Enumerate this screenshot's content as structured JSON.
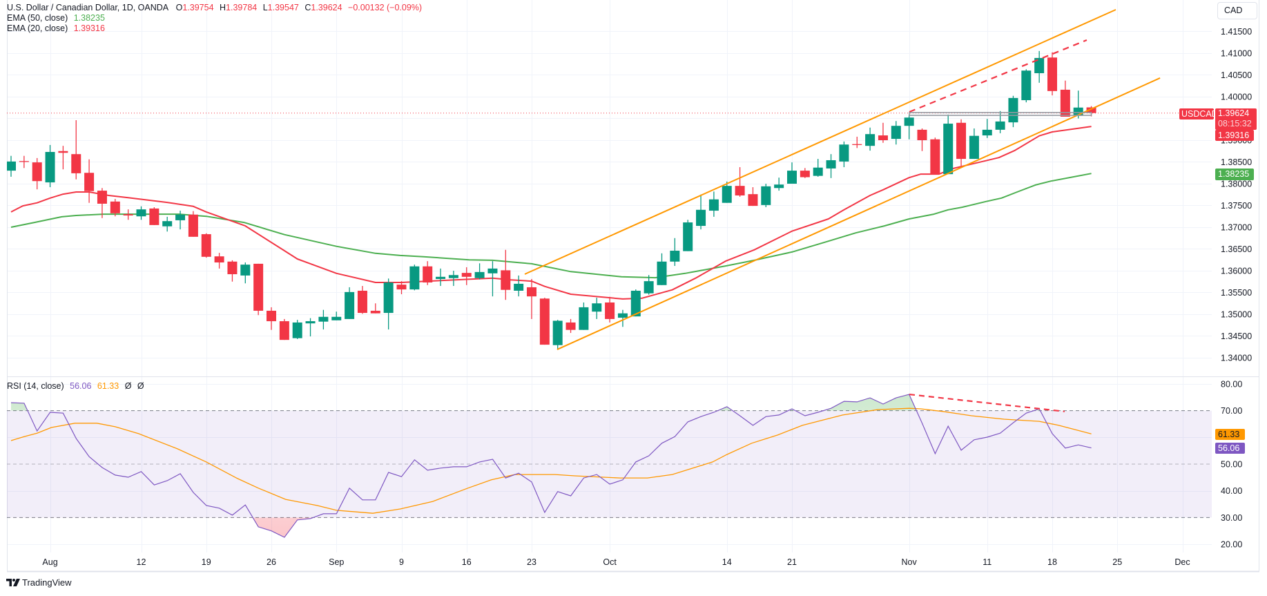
{
  "legend": {
    "title": "U.S. Dollar / Canadian Dollar, 1D, OANDA",
    "open_label": "O",
    "open": "1.39754",
    "high_label": "H",
    "high": "1.39784",
    "low_label": "L",
    "low": "1.39547",
    "close_label": "C",
    "close": "1.39624",
    "change": "−0.00132 (−0.09%)",
    "ema50_label": "EMA (50, close)",
    "ema50_value": "1.38235",
    "ema20_label": "EMA (20, close)",
    "ema20_value": "1.39316",
    "rsi_label": "RSI (14, close)",
    "rsi_value": "56.06",
    "rsi_ma_value": "61.33",
    "rsi_extra_1": "Ø",
    "rsi_extra_2": "Ø"
  },
  "currency_button": "CAD",
  "price_labels": {
    "symbol": "USDCAD",
    "last_price": "1.39624",
    "countdown": "08:15:32",
    "ema20": "1.39316",
    "ema50": "1.38235",
    "rsi_ma": "61.33",
    "rsi": "56.06"
  },
  "branding": {
    "logo_icon": "tradingview-logo-icon",
    "name": "TradingView"
  },
  "colors": {
    "up": "#089981",
    "down": "#f23645",
    "ema20": "#f23645",
    "ema50": "#4caf50",
    "channel": "#ff9800",
    "rsi": "#7e57c2",
    "rsi_ma": "#ff9800",
    "grid": "#f0f3fa",
    "rsi_band": "#7e57c2",
    "rect": "#9598a1"
  },
  "chart_data": {
    "type": "candlestick",
    "symbol": "USDCAD",
    "timeframe": "1D",
    "ylim": [
      1.334,
      1.4205
    ],
    "price_ticks": [
      "1.41500",
      "1.41000",
      "1.40500",
      "1.40000",
      "1.39000",
      "1.38500",
      "1.38000",
      "1.37500",
      "1.37000",
      "1.36500",
      "1.36000",
      "1.35500",
      "1.35000",
      "1.34500",
      "1.34000"
    ],
    "time_ticks": [
      {
        "label": "Aug",
        "index": 3
      },
      {
        "label": "12",
        "index": 10
      },
      {
        "label": "19",
        "index": 15
      },
      {
        "label": "26",
        "index": 20
      },
      {
        "label": "Sep",
        "index": 25
      },
      {
        "label": "9",
        "index": 30
      },
      {
        "label": "16",
        "index": 35
      },
      {
        "label": "23",
        "index": 40
      },
      {
        "label": "Oct",
        "index": 46
      },
      {
        "label": "14",
        "index": 55
      },
      {
        "label": "21",
        "index": 60
      },
      {
        "label": "Nov",
        "index": 69
      },
      {
        "label": "11",
        "index": 75
      },
      {
        "label": "18",
        "index": 80
      },
      {
        "label": "25",
        "index": 85
      },
      {
        "label": "Dec",
        "index": 90
      }
    ],
    "ohlc": [
      [
        1.383,
        1.3864,
        1.3816,
        1.3851
      ],
      [
        1.3852,
        1.3864,
        1.3836,
        1.385
      ],
      [
        1.3849,
        1.3859,
        1.3787,
        1.3806
      ],
      [
        1.3803,
        1.3889,
        1.3792,
        1.3873
      ],
      [
        1.3875,
        1.3887,
        1.3833,
        1.3871
      ],
      [
        1.3868,
        1.3946,
        1.381,
        1.3824
      ],
      [
        1.3825,
        1.3856,
        1.3756,
        1.3783
      ],
      [
        1.3784,
        1.379,
        1.3721,
        1.3754
      ],
      [
        1.3759,
        1.3765,
        1.3725,
        1.3732
      ],
      [
        1.373,
        1.3741,
        1.3717,
        1.3727
      ],
      [
        1.3725,
        1.3748,
        1.3717,
        1.3741
      ],
      [
        1.3743,
        1.3746,
        1.3705,
        1.3705
      ],
      [
        1.3702,
        1.3724,
        1.369,
        1.3714
      ],
      [
        1.3716,
        1.3738,
        1.3695,
        1.3729
      ],
      [
        1.3729,
        1.3737,
        1.3678,
        1.3678
      ],
      [
        1.3684,
        1.3686,
        1.363,
        1.3632
      ],
      [
        1.3633,
        1.3641,
        1.3605,
        1.3619
      ],
      [
        1.3621,
        1.3624,
        1.3575,
        1.3592
      ],
      [
        1.3589,
        1.3619,
        1.3571,
        1.3614
      ],
      [
        1.3616,
        1.3616,
        1.3498,
        1.3508
      ],
      [
        1.3508,
        1.3516,
        1.3464,
        1.3484
      ],
      [
        1.3484,
        1.3489,
        1.3441,
        1.3441
      ],
      [
        1.3445,
        1.3487,
        1.3443,
        1.3481
      ],
      [
        1.3479,
        1.3491,
        1.3449,
        1.3484
      ],
      [
        1.3483,
        1.351,
        1.3465,
        1.3494
      ],
      [
        1.3486,
        1.3506,
        1.3486,
        1.3494
      ],
      [
        1.3489,
        1.3562,
        1.3489,
        1.3551
      ],
      [
        1.3554,
        1.3565,
        1.3501,
        1.3503
      ],
      [
        1.3508,
        1.3525,
        1.3502,
        1.3502
      ],
      [
        1.3503,
        1.3582,
        1.3465,
        1.3573
      ],
      [
        1.3568,
        1.3576,
        1.3546,
        1.3557
      ],
      [
        1.3557,
        1.3614,
        1.3555,
        1.361
      ],
      [
        1.361,
        1.3622,
        1.3567,
        1.3573
      ],
      [
        1.3581,
        1.3605,
        1.3565,
        1.3586
      ],
      [
        1.3583,
        1.36,
        1.3565,
        1.359
      ],
      [
        1.3595,
        1.3608,
        1.3567,
        1.3586
      ],
      [
        1.3583,
        1.3617,
        1.358,
        1.3597
      ],
      [
        1.3594,
        1.3622,
        1.3541,
        1.3605
      ],
      [
        1.3601,
        1.3648,
        1.3533,
        1.3556
      ],
      [
        1.3554,
        1.3589,
        1.3541,
        1.357
      ],
      [
        1.3562,
        1.3581,
        1.3489,
        1.3541
      ],
      [
        1.3536,
        1.3538,
        1.343,
        1.343
      ],
      [
        1.3429,
        1.3487,
        1.3419,
        1.3485
      ],
      [
        1.3481,
        1.3489,
        1.3457,
        1.3464
      ],
      [
        1.3464,
        1.3527,
        1.3464,
        1.3516
      ],
      [
        1.3506,
        1.3538,
        1.3489,
        1.3525
      ],
      [
        1.3527,
        1.354,
        1.3481,
        1.3489
      ],
      [
        1.3492,
        1.351,
        1.3471,
        1.3502
      ],
      [
        1.3495,
        1.3557,
        1.3495,
        1.3554
      ],
      [
        1.3548,
        1.359,
        1.3545,
        1.3576
      ],
      [
        1.3567,
        1.364,
        1.3567,
        1.3621
      ],
      [
        1.3621,
        1.3675,
        1.3611,
        1.3646
      ],
      [
        1.3645,
        1.3717,
        1.3645,
        1.3711
      ],
      [
        1.3703,
        1.3775,
        1.3695,
        1.374
      ],
      [
        1.3738,
        1.3782,
        1.3724,
        1.3764
      ],
      [
        1.3756,
        1.3805,
        1.3756,
        1.3795
      ],
      [
        1.3795,
        1.3838,
        1.377,
        1.3773
      ],
      [
        1.3776,
        1.3792,
        1.3749,
        1.3749
      ],
      [
        1.3751,
        1.38,
        1.3746,
        1.3794
      ],
      [
        1.379,
        1.3814,
        1.3784,
        1.3798
      ],
      [
        1.38,
        1.3849,
        1.38,
        1.383
      ],
      [
        1.383,
        1.3836,
        1.3813,
        1.3815
      ],
      [
        1.3818,
        1.3857,
        1.3816,
        1.3837
      ],
      [
        1.3835,
        1.3868,
        1.3813,
        1.3854
      ],
      [
        1.3851,
        1.3897,
        1.3838,
        1.389
      ],
      [
        1.3891,
        1.3908,
        1.3882,
        1.3889
      ],
      [
        1.3887,
        1.3929,
        1.3876,
        1.3914
      ],
      [
        1.3911,
        1.394,
        1.3894,
        1.39
      ],
      [
        1.3903,
        1.3944,
        1.389,
        1.3933
      ],
      [
        1.3933,
        1.3959,
        1.3902,
        1.3952
      ],
      [
        1.3924,
        1.3927,
        1.3875,
        1.39
      ],
      [
        1.3902,
        1.3906,
        1.3822,
        1.3822
      ],
      [
        1.3822,
        1.3959,
        1.3822,
        1.3938
      ],
      [
        1.394,
        1.3948,
        1.3841,
        1.3857
      ],
      [
        1.3857,
        1.3927,
        1.3857,
        1.391
      ],
      [
        1.3911,
        1.3949,
        1.3905,
        1.3924
      ],
      [
        1.3924,
        1.3967,
        1.3916,
        1.3943
      ],
      [
        1.3941,
        1.4002,
        1.393,
        1.3997
      ],
      [
        1.3992,
        1.4063,
        1.3987,
        1.406
      ],
      [
        1.4054,
        1.4105,
        1.4032,
        1.4089
      ],
      [
        1.409,
        1.4102,
        1.4003,
        1.4013
      ],
      [
        1.4016,
        1.4037,
        1.3954,
        1.3954
      ],
      [
        1.3956,
        1.4014,
        1.395,
        1.3975
      ],
      [
        1.39754,
        1.39784,
        1.39547,
        1.39624
      ]
    ],
    "ema20": [
      [
        0,
        1.3735
      ],
      [
        0.9,
        1.3749
      ],
      [
        2,
        1.3756
      ],
      [
        3,
        1.3767
      ],
      [
        4,
        1.3776
      ],
      [
        5,
        1.3781
      ],
      [
        6,
        1.3781
      ],
      [
        7.5,
        1.3773
      ],
      [
        9,
        1.3768
      ],
      [
        12,
        1.3757
      ],
      [
        14,
        1.3748
      ],
      [
        15,
        1.3735
      ],
      [
        18,
        1.3703
      ],
      [
        21,
        1.3646
      ],
      [
        22,
        1.3627
      ],
      [
        25,
        1.3594
      ],
      [
        28,
        1.3573
      ],
      [
        30,
        1.3573
      ],
      [
        32,
        1.3576
      ],
      [
        37,
        1.3583
      ],
      [
        38.4,
        1.3579
      ],
      [
        40,
        1.3576
      ],
      [
        41,
        1.3564
      ],
      [
        43,
        1.3546
      ],
      [
        47,
        1.3535
      ],
      [
        48.5,
        1.3537
      ],
      [
        50.8,
        1.3556
      ],
      [
        52.6,
        1.3583
      ],
      [
        54.9,
        1.3622
      ],
      [
        57.1,
        1.3648
      ],
      [
        60,
        1.3691
      ],
      [
        62.8,
        1.3719
      ],
      [
        64,
        1.374
      ],
      [
        66,
        1.3773
      ],
      [
        67,
        1.3786
      ],
      [
        69,
        1.3814
      ],
      [
        69.9,
        1.3822
      ],
      [
        71.3,
        1.3822
      ],
      [
        72.4,
        1.3835
      ],
      [
        74.2,
        1.3848
      ],
      [
        75.9,
        1.386
      ],
      [
        77.1,
        1.3876
      ],
      [
        79,
        1.391
      ],
      [
        80,
        1.3919
      ],
      [
        83,
        1.39316
      ]
    ],
    "ema50": [
      [
        0,
        1.37
      ],
      [
        1.8,
        1.3711
      ],
      [
        3.9,
        1.3724
      ],
      [
        5,
        1.3727
      ],
      [
        7.1,
        1.373
      ],
      [
        12.9,
        1.373
      ],
      [
        15,
        1.3725
      ],
      [
        17.9,
        1.3711
      ],
      [
        21,
        1.3683
      ],
      [
        25,
        1.3656
      ],
      [
        28,
        1.364
      ],
      [
        29.9,
        1.3635
      ],
      [
        31.7,
        1.3632
      ],
      [
        35.2,
        1.3625
      ],
      [
        37,
        1.3624
      ],
      [
        40,
        1.3616
      ],
      [
        43,
        1.3598
      ],
      [
        46.9,
        1.3586
      ],
      [
        49.5,
        1.3584
      ],
      [
        51.8,
        1.3594
      ],
      [
        54.9,
        1.3611
      ],
      [
        57.1,
        1.3624
      ],
      [
        60,
        1.3643
      ],
      [
        62.8,
        1.3668
      ],
      [
        64.9,
        1.3687
      ],
      [
        67.1,
        1.3703
      ],
      [
        69,
        1.3719
      ],
      [
        70.9,
        1.373
      ],
      [
        72,
        1.374
      ],
      [
        73.1,
        1.3746
      ],
      [
        74.9,
        1.3759
      ],
      [
        76.1,
        1.3767
      ],
      [
        77.3,
        1.3781
      ],
      [
        78.7,
        1.3797
      ],
      [
        79.9,
        1.3806
      ],
      [
        83,
        1.38235
      ]
    ],
    "rsi": {
      "ylim": [
        15,
        84
      ],
      "ticks": [
        "80.00",
        "70.00",
        "50.00",
        "40.00",
        "30.00",
        "20.00"
      ],
      "upper_band": 70,
      "middle_band": 50,
      "lower_band": 30,
      "values": [
        73.0,
        72.8,
        62.4,
        69.4,
        69.1,
        59.6,
        52.8,
        48.7,
        45.9,
        45.1,
        47.2,
        42.2,
        43.8,
        46.4,
        39.4,
        34.5,
        33.5,
        30.9,
        34.7,
        26.5,
        25.0,
        22.6,
        29.1,
        29.6,
        31.4,
        31.4,
        41.0,
        36.6,
        36.6,
        46.9,
        45.3,
        51.6,
        47.7,
        48.5,
        49.0,
        49.0,
        50.8,
        51.8,
        44.8,
        46.6,
        43.3,
        31.9,
        39.7,
        38.1,
        44.8,
        46.1,
        42.5,
        44.1,
        50.8,
        53.1,
        57.8,
        60.3,
        65.8,
        67.8,
        69.4,
        71.5,
        68.1,
        64.5,
        67.8,
        68.4,
        70.7,
        68.1,
        69.4,
        70.9,
        73.5,
        73.3,
        74.8,
        72.5,
        74.8,
        76.1,
        65.3,
        53.9,
        64.2,
        55.2,
        59.1,
        60.1,
        61.6,
        65.5,
        69.1,
        70.7,
        61.4,
        56.0,
        57.2,
        56.06
      ],
      "ma": [
        [
          0,
          58.8
        ],
        [
          1,
          60.3
        ],
        [
          2,
          61.6
        ],
        [
          3.1,
          63.7
        ],
        [
          4.9,
          65.3
        ],
        [
          6.6,
          65.3
        ],
        [
          8,
          64.0
        ],
        [
          9.8,
          61.4
        ],
        [
          12.8,
          55.7
        ],
        [
          15,
          50.8
        ],
        [
          17.4,
          44.6
        ],
        [
          19,
          41.0
        ],
        [
          21.1,
          36.8
        ],
        [
          23.5,
          34.5
        ],
        [
          25,
          32.7
        ],
        [
          27.8,
          31.6
        ],
        [
          29.9,
          33.2
        ],
        [
          32.4,
          36.0
        ],
        [
          35.1,
          41.0
        ],
        [
          36.9,
          44.1
        ],
        [
          38.7,
          46.1
        ],
        [
          41.8,
          46.1
        ],
        [
          43.3,
          45.6
        ],
        [
          46.8,
          44.8
        ],
        [
          48.9,
          44.8
        ],
        [
          50.8,
          46.1
        ],
        [
          53.9,
          50.8
        ],
        [
          55,
          53.6
        ],
        [
          56.9,
          57.8
        ],
        [
          58.9,
          60.9
        ],
        [
          60.8,
          64.5
        ],
        [
          63.9,
          68.4
        ],
        [
          66.6,
          70.4
        ],
        [
          69,
          70.9
        ],
        [
          69.9,
          70.7
        ],
        [
          71.6,
          69.7
        ],
        [
          73.8,
          68.1
        ],
        [
          76.3,
          66.8
        ],
        [
          79,
          66.0
        ],
        [
          80.5,
          64.5
        ],
        [
          83,
          61.33
        ]
      ]
    },
    "drawings": {
      "channel_upper": [
        [
          39.47,
          1.35921
        ],
        [
          84.88,
          1.42
        ]
      ],
      "channel_lower": [
        [
          41.96,
          1.3419
        ],
        [
          88.28,
          1.40429
        ]
      ],
      "price_divergence": [
        [
          69.02,
          1.39651
        ],
        [
          82.65,
          1.41302
        ]
      ],
      "range_box": {
        "from": 69.02,
        "to": 83,
        "top": 1.39635,
        "bottom": 1.39571
      },
      "rsi_divergence": [
        [
          69.02,
          76.1
        ],
        [
          80.95,
          69.7
        ]
      ],
      "last_price": 1.39624
    }
  }
}
